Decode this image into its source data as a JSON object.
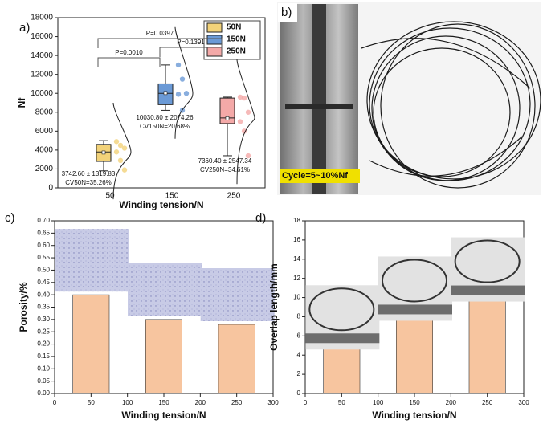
{
  "photo_panel": {
    "panel": "b)",
    "caption": "Cycle=5~10%Nf"
  },
  "chart_data": [
    {
      "type": "box",
      "panel": "a)",
      "xlabel": "Winding tension/N",
      "ylabel": "Nf",
      "categories": [
        "50",
        "150",
        "250"
      ],
      "ylim": [
        0,
        18000
      ],
      "yticks": [
        0,
        2000,
        4000,
        6000,
        8000,
        10000,
        12000,
        14000,
        16000,
        18000
      ],
      "legend": "top-right",
      "series": [
        {
          "name": "50N",
          "color": "#f2d279",
          "box": [
            1800,
            2800,
            3800,
            4600,
            5000
          ],
          "mean": 3742.6,
          "points": [
            4900,
            4500,
            4200,
            3800,
            2900,
            1900
          ],
          "stat": "3742.60 ± 1319.83",
          "cv": "CV50N=35.26%"
        },
        {
          "name": "150N",
          "color": "#6b9ad6",
          "box": [
            8200,
            8800,
            10000,
            11000,
            13000
          ],
          "mean": 10030.8,
          "points": [
            13000,
            11500,
            10000,
            9900,
            8200
          ],
          "stat": "10030.80 ± 2074.26",
          "cv": "CV150N=20.68%"
        },
        {
          "name": "250N",
          "color": "#f4a9a8",
          "box": [
            3400,
            6800,
            7400,
            9500,
            9600
          ],
          "mean": 7360.4,
          "points": [
            9600,
            9500,
            8000,
            7000,
            6000,
            3400
          ],
          "stat": "7360.40 ± 2547.34",
          "cv": "CV250N=34.61%"
        }
      ],
      "comparisons": [
        "P=0.0397",
        "P=0.0010",
        "P=0.1391"
      ]
    },
    {
      "type": "bar",
      "panel": "c)",
      "xlabel": "Winding tension/N",
      "ylabel": "Porosity/%",
      "x": [
        50,
        150,
        250
      ],
      "values": [
        0.4,
        0.3,
        0.28
      ],
      "color": "#f7c59f",
      "xlim": [
        0,
        300
      ],
      "xticks": [
        0,
        50,
        100,
        150,
        200,
        250,
        300
      ],
      "ylim": [
        0,
        0.7
      ],
      "yticks": [
        {
          "value": 0,
          "label": "0.00"
        },
        {
          "value": 0.05,
          "label": "0.05"
        },
        {
          "value": 0.1,
          "label": "0.10"
        },
        {
          "value": 0.15,
          "label": "0.15"
        },
        {
          "value": 0.2,
          "label": "0.20"
        },
        {
          "value": 0.25,
          "label": "0.25"
        },
        {
          "value": 0.3,
          "label": "0.30"
        },
        {
          "value": 0.35,
          "label": "0.35"
        },
        {
          "value": 0.4,
          "label": "0.40"
        },
        {
          "value": 0.45,
          "label": "0.45"
        },
        {
          "value": 0.5,
          "label": "0.50"
        },
        {
          "value": 0.55,
          "label": "0.55"
        },
        {
          "value": 0.6,
          "label": "0.60"
        },
        {
          "value": 0.65,
          "label": "0.65"
        },
        {
          "value": 0.7,
          "label": "0.70"
        }
      ]
    },
    {
      "type": "bar",
      "panel": "d)",
      "xlabel": "Winding tension/N",
      "ylabel": "Overlap length/mm",
      "x": [
        50,
        150,
        250
      ],
      "values": [
        5,
        8,
        10
      ],
      "color": "#f7c59f",
      "xlim": [
        0,
        300
      ],
      "xticks": [
        0,
        50,
        100,
        150,
        200,
        250,
        300
      ],
      "ylim": [
        0,
        18
      ],
      "yticks": [
        0,
        2,
        4,
        6,
        8,
        10,
        12,
        14,
        16,
        18
      ]
    }
  ]
}
